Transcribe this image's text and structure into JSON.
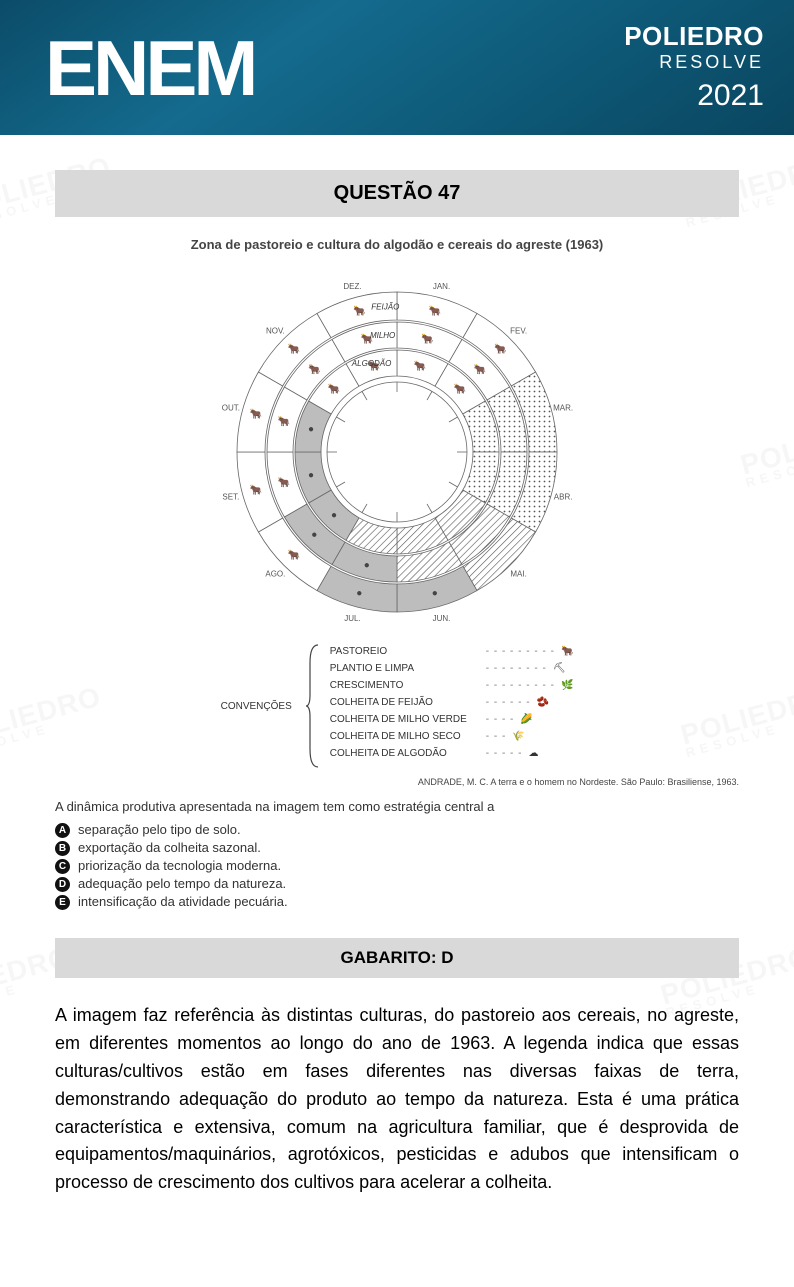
{
  "header": {
    "enem": "ENEM",
    "brand_line1": "POLIEDRO",
    "brand_line2": "RESOLVE",
    "year": "2021"
  },
  "watermark": {
    "line1": "POLIEDRO",
    "line2": "RESOLVE"
  },
  "question": {
    "title_bar": "QUESTÃO 47",
    "figure_title": "Zona de pastoreio e cultura do algodão e cereais do agreste (1963)",
    "months": [
      "JAN.",
      "FEV.",
      "MAR.",
      "ABR.",
      "MAI.",
      "JUN.",
      "JUL.",
      "AGO.",
      "SET.",
      "OUT.",
      "NOV.",
      "DEZ."
    ],
    "ring_labels": {
      "outer": "FEIJÃO",
      "middle": "MILHO",
      "inner": "ALGODÃO"
    },
    "legend_title": "CONVENÇÕES",
    "legend_items": [
      {
        "label": "PASTOREIO",
        "glyph": "🐂"
      },
      {
        "label": "PLANTIO E LIMPA",
        "glyph": "⛏"
      },
      {
        "label": "CRESCIMENTO",
        "glyph": "🌿"
      },
      {
        "label": "COLHEITA DE FEIJÃO",
        "glyph": "🫘"
      },
      {
        "label": "COLHEITA DE MILHO VERDE",
        "glyph": "🌽"
      },
      {
        "label": "COLHEITA DE MILHO SECO",
        "glyph": "🌾"
      },
      {
        "label": "COLHEITA DE ALGODÃO",
        "glyph": "☁"
      }
    ],
    "citation": "ANDRADE, M. C. A terra e o homem no Nordeste. São Paulo: Brasiliense, 1963.",
    "prompt": "A dinâmica produtiva apresentada na imagem tem como estratégia central a",
    "options": [
      {
        "letter": "A",
        "text": "separação pelo tipo de solo."
      },
      {
        "letter": "B",
        "text": "exportação da colheita sazonal."
      },
      {
        "letter": "C",
        "text": "priorização da tecnologia moderna."
      },
      {
        "letter": "D",
        "text": "adequação pelo tempo da natureza."
      },
      {
        "letter": "E",
        "text": "intensificação da atividade pecuária."
      }
    ]
  },
  "answer": {
    "bar_text": "GABARITO: D",
    "explanation": "A imagem faz referência às distintas culturas, do pastoreio aos cereais, no agreste, em diferentes momentos ao longo do ano de 1963. A legenda indica que essas culturas/cultivos estão em fases diferentes nas diversas faixas de terra, demonstrando adequação do produto ao tempo da natureza. Esta é uma prática característica e extensiva, comum na agricultura familiar, que é desprovida de equipamentos/maquinários, agrotóxicos, pesticidas e adubos que intensificam o processo de crescimento dos cultivos para acelerar a colheita."
  },
  "colors": {
    "header_bg": "#0f5d7d",
    "bar_bg": "#d9d9d9",
    "text": "#000000",
    "ring_stroke": "#666666"
  }
}
